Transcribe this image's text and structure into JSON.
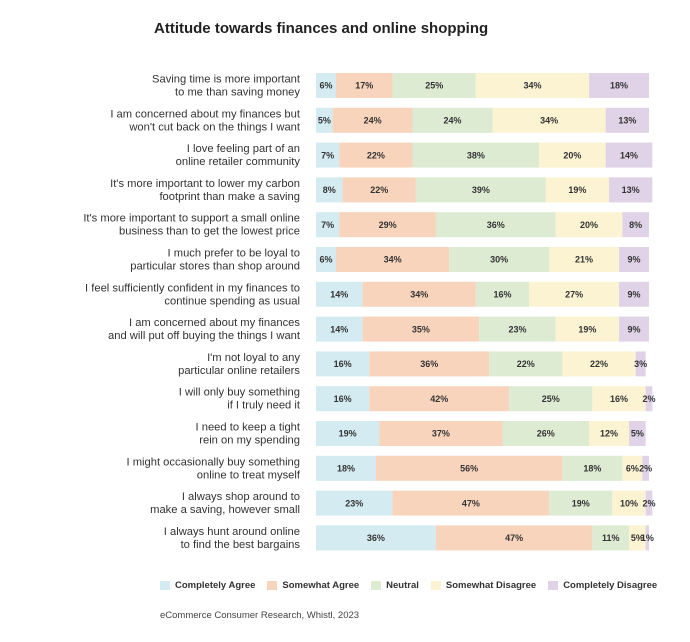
{
  "chart_data": {
    "type": "bar",
    "orientation": "horizontal",
    "stacked": true,
    "title": "Attitude towards finances and online shopping",
    "xlabel": "",
    "ylabel": "",
    "xlim": [
      0,
      100
    ],
    "grid": false,
    "legend_position": "bottom",
    "categories": [
      [
        "Saving time is more important",
        "to me than saving money"
      ],
      [
        "I am concerned about my finances but",
        "won't cut back on the things I want"
      ],
      [
        "I love feeling part of an",
        "online retailer community"
      ],
      [
        "It's more important to lower my carbon",
        "footprint than make a saving"
      ],
      [
        "It's more important to support a small online",
        "business than to get the lowest price"
      ],
      [
        "I much prefer to be loyal to",
        "particular stores than shop around"
      ],
      [
        "I feel sufficiently confident in my finances to",
        "continue spending as usual"
      ],
      [
        "I am concerned about my finances",
        "and will put off buying the things I want"
      ],
      [
        "I'm not loyal to any",
        "particular online retailers"
      ],
      [
        "I will only buy something",
        "if I truly need it"
      ],
      [
        "I need to keep a tight",
        "rein on my spending"
      ],
      [
        "I might occasionally buy something",
        "online to treat myself"
      ],
      [
        "I always shop around to",
        "make a saving, however small"
      ],
      [
        "I always hunt around online",
        "to find the best bargains"
      ]
    ],
    "series": [
      {
        "name": "Completely Agree",
        "color": "#d3ebf1",
        "values": [
          6,
          5,
          7,
          8,
          7,
          6,
          14,
          14,
          16,
          16,
          19,
          18,
          23,
          36
        ]
      },
      {
        "name": "Somewhat Agree",
        "color": "#f9d4bc",
        "values": [
          17,
          24,
          22,
          22,
          29,
          34,
          34,
          35,
          36,
          42,
          37,
          56,
          47,
          47
        ]
      },
      {
        "name": "Neutral",
        "color": "#dcebd2",
        "values": [
          25,
          24,
          38,
          39,
          36,
          30,
          16,
          23,
          22,
          25,
          26,
          18,
          19,
          11
        ]
      },
      {
        "name": "Somewhat Disagree",
        "color": "#fbf3d2",
        "values": [
          34,
          34,
          20,
          19,
          20,
          21,
          27,
          19,
          22,
          16,
          12,
          6,
          10,
          5
        ]
      },
      {
        "name": "Completely Disagree",
        "color": "#e0d3e7",
        "values": [
          18,
          13,
          14,
          13,
          8,
          9,
          9,
          9,
          3,
          2,
          5,
          2,
          2,
          1
        ]
      }
    ]
  },
  "source": "eCommerce Consumer Research, Whistl, 2023"
}
